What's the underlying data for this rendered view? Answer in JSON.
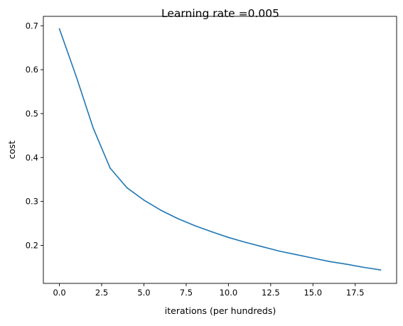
{
  "chart_data": {
    "type": "line",
    "title": "Learning rate =0.005",
    "xlabel": "iterations (per hundreds)",
    "ylabel": "cost",
    "xlim": [
      -0.95,
      19.95
    ],
    "ylim": [
      0.1134,
      0.7215
    ],
    "xticks": [
      0.0,
      2.5,
      5.0,
      7.5,
      10.0,
      12.5,
      15.0,
      17.5
    ],
    "xtick_labels": [
      "0.0",
      "2.5",
      "5.0",
      "7.5",
      "10.0",
      "12.5",
      "15.0",
      "17.5"
    ],
    "yticks": [
      0.2,
      0.3,
      0.4,
      0.5,
      0.6,
      0.7
    ],
    "ytick_labels": [
      "0.2",
      "0.3",
      "0.4",
      "0.5",
      "0.6",
      "0.7"
    ],
    "grid": false,
    "legend": "none",
    "series": [
      {
        "color": "#1f77b4",
        "x": [
          0,
          1,
          2,
          3,
          4,
          5,
          6,
          7,
          8,
          9,
          10,
          11,
          12,
          13,
          14,
          15,
          16,
          17,
          18,
          19
        ],
        "values": [
          0.693,
          0.584,
          0.467,
          0.376,
          0.331,
          0.303,
          0.28,
          0.261,
          0.245,
          0.231,
          0.218,
          0.207,
          0.197,
          0.187,
          0.179,
          0.171,
          0.163,
          0.157,
          0.15,
          0.144
        ]
      }
    ]
  }
}
